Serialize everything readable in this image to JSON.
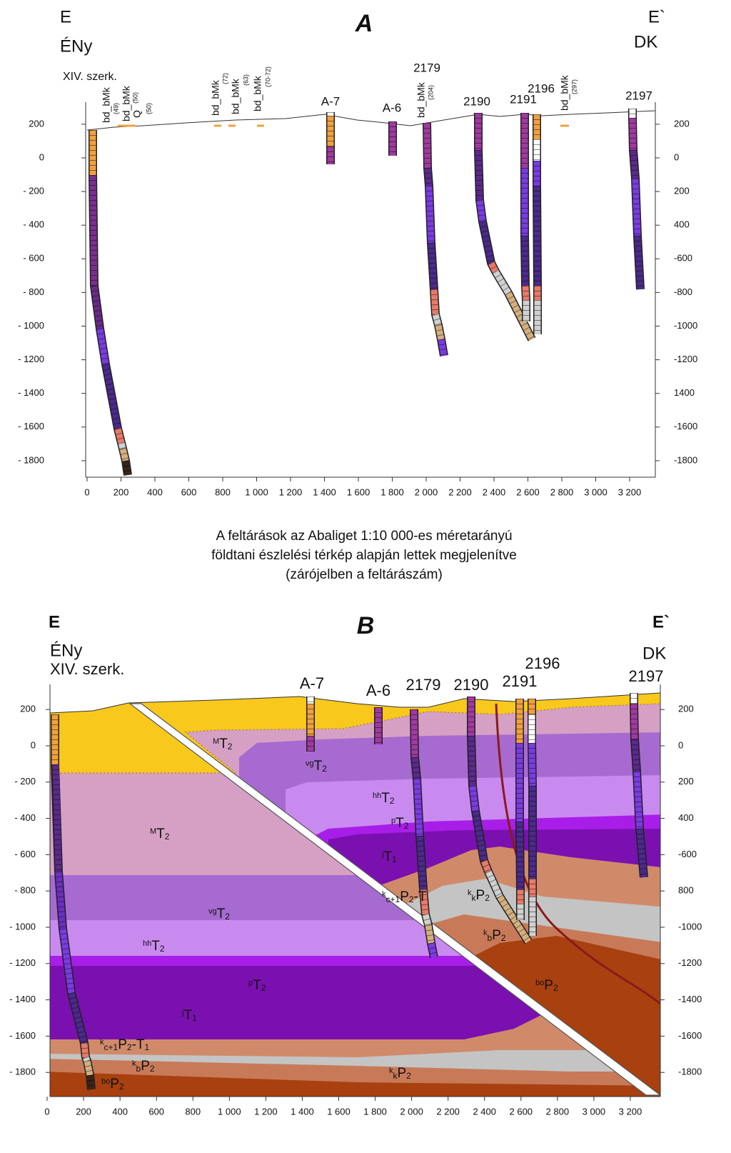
{
  "panel_a": {
    "title": "A",
    "left_top": "E",
    "left_sub": "ÉNy",
    "right_top": "E`",
    "right_sub": "DK",
    "well_label": "XIV. szerk.",
    "boreholes": [
      "A-7",
      "A-6",
      "2179",
      "2190",
      "2191",
      "2196",
      "2197"
    ],
    "outcrops": [
      "bd_bMk",
      "(49)",
      "bd_bMk",
      "Q",
      "(50)",
      "(50)",
      "bd_bMk",
      "(72)",
      "bd_bMk",
      "(63)",
      "bd_bMk",
      "(70-72)",
      "bd_bMk",
      "(204)",
      "bd_bMk",
      "(297)"
    ],
    "xticks": [
      0,
      200,
      400,
      600,
      800,
      {
        "value": 1000,
        "label": "1 000"
      },
      {
        "value": 1200,
        "label": "1 200"
      },
      {
        "value": 1400,
        "label": "1 400"
      },
      {
        "value": 1600,
        "label": "1 600"
      },
      {
        "value": 1800,
        "label": "1 800"
      },
      {
        "value": 2000,
        "label": "2 000"
      },
      {
        "value": 2200,
        "label": "2 200"
      },
      {
        "value": 2400,
        "label": "2 400"
      },
      {
        "value": 2600,
        "label": "2 600"
      },
      {
        "value": 2800,
        "label": "2 800"
      },
      {
        "value": 3000,
        "label": "3 000"
      },
      {
        "value": 3200,
        "label": "3 200"
      }
    ],
    "yticks": [
      200,
      0,
      {
        "value": -200,
        "label": "- 200"
      },
      {
        "value": -400,
        "label": "- 400"
      },
      {
        "value": -600,
        "label": "- 600"
      },
      {
        "value": -800,
        "label": "- 800"
      },
      {
        "value": -1000,
        "label": "- 1000"
      },
      {
        "value": -1200,
        "label": "- 1200"
      },
      {
        "value": -1400,
        "label": "- 1400"
      },
      {
        "value": -1600,
        "label": "- 1600"
      },
      {
        "value": -1800,
        "label": "- 1800"
      }
    ],
    "y2ticks": [
      200,
      0,
      {
        "value": -200,
        "label": "200"
      },
      {
        "value": -400,
        "label": "400"
      },
      -600,
      -800,
      -1000,
      -1200,
      {
        "value": -1400,
        "label": "1400"
      },
      -1600,
      -1800
    ]
  },
  "caption": [
    "A feltárások az Abaliget 1:10 000-es méretarányú",
    "földtani észlelési térkép alapján lettek megjelenítve",
    "(zárójelben a feltárászám)"
  ],
  "panel_b": {
    "title": "B",
    "left_top": "E",
    "left_sub": "ÉNy",
    "right_top": "E`",
    "right_sub": "DK",
    "well_label": "XIV. szerk.",
    "boreholes": [
      "A-7",
      "A-6",
      "2179",
      "2190",
      "2191",
      "2196",
      "2197"
    ],
    "formations": [
      {
        "parts": [
          {
            "t": "M",
            "pos": "sup"
          },
          {
            "t": "T",
            "pos": "base"
          },
          {
            "t": "2",
            "pos": "sub"
          }
        ]
      },
      {
        "parts": [
          {
            "t": "vg",
            "pos": "sup"
          },
          {
            "t": "T",
            "pos": "base"
          },
          {
            "t": "2",
            "pos": "sub"
          }
        ]
      },
      {
        "parts": [
          {
            "t": "hh",
            "pos": "sup"
          },
          {
            "t": "T",
            "pos": "base"
          },
          {
            "t": "2",
            "pos": "sub"
          }
        ]
      },
      {
        "parts": [
          {
            "t": "p",
            "pos": "sup"
          },
          {
            "t": "T",
            "pos": "base"
          },
          {
            "t": "2",
            "pos": "sub"
          }
        ]
      },
      {
        "parts": [
          {
            "t": "j",
            "pos": "sup"
          },
          {
            "t": "T",
            "pos": "base"
          },
          {
            "t": "1",
            "pos": "sub"
          }
        ]
      },
      {
        "parts": [
          {
            "t": "M",
            "pos": "sup"
          },
          {
            "t": "T",
            "pos": "base"
          },
          {
            "t": "2",
            "pos": "sub"
          }
        ]
      },
      {
        "parts": [
          {
            "t": "vg",
            "pos": "sup"
          },
          {
            "t": "T",
            "pos": "base"
          },
          {
            "t": "2",
            "pos": "sub"
          }
        ]
      },
      {
        "parts": [
          {
            "t": "hh",
            "pos": "sup"
          },
          {
            "t": "T",
            "pos": "base"
          },
          {
            "t": "2",
            "pos": "sub"
          }
        ]
      },
      {
        "parts": [
          {
            "t": "p",
            "pos": "sup"
          },
          {
            "t": "T",
            "pos": "base"
          },
          {
            "t": "2",
            "pos": "sub"
          }
        ]
      },
      {
        "parts": [
          {
            "t": "j",
            "pos": "sup"
          },
          {
            "t": "T",
            "pos": "base"
          },
          {
            "t": "1",
            "pos": "sub"
          }
        ]
      },
      {
        "parts": [
          {
            "t": "k",
            "pos": "sup"
          },
          {
            "t": "c+1",
            "pos": "sub"
          },
          {
            "t": "P",
            "pos": "base"
          },
          {
            "t": "2",
            "pos": "sub"
          },
          {
            "t": "-T",
            "pos": "base"
          },
          {
            "t": "1",
            "pos": "sub"
          }
        ]
      },
      {
        "parts": [
          {
            "t": "k",
            "pos": "sup"
          },
          {
            "t": "b",
            "pos": "sub"
          },
          {
            "t": "P",
            "pos": "base"
          },
          {
            "t": "2",
            "pos": "sub"
          }
        ]
      },
      {
        "parts": [
          {
            "t": "bo",
            "pos": "sup"
          },
          {
            "t": "P",
            "pos": "base"
          },
          {
            "t": "2",
            "pos": "sub"
          }
        ]
      },
      {
        "parts": [
          {
            "t": "k",
            "pos": "sup"
          },
          {
            "t": "k",
            "pos": "sub"
          },
          {
            "t": "P",
            "pos": "base"
          },
          {
            "t": "2",
            "pos": "sub"
          }
        ]
      },
      {
        "parts": [
          {
            "t": "k",
            "pos": "sup"
          },
          {
            "t": "c+1",
            "pos": "sub"
          },
          {
            "t": "P",
            "pos": "base"
          },
          {
            "t": "2",
            "pos": "sub"
          },
          {
            "t": "-T",
            "pos": "base"
          }
        ]
      },
      {
        "parts": [
          {
            "t": "k",
            "pos": "sup"
          },
          {
            "t": "k",
            "pos": "sub"
          },
          {
            "t": "P",
            "pos": "base"
          },
          {
            "t": "2",
            "pos": "sub"
          }
        ]
      },
      {
        "parts": [
          {
            "t": "k",
            "pos": "sup"
          },
          {
            "t": "b",
            "pos": "sub"
          },
          {
            "t": "P",
            "pos": "base"
          },
          {
            "t": "2",
            "pos": "sub"
          }
        ]
      },
      {
        "parts": [
          {
            "t": "bo",
            "pos": "sup"
          },
          {
            "t": "P",
            "pos": "base"
          },
          {
            "t": "2",
            "pos": "sub"
          }
        ]
      }
    ],
    "xticks": [
      0,
      200,
      400,
      600,
      800,
      {
        "value": 1000,
        "label": "1 000"
      },
      {
        "value": 1200,
        "label": "1 200"
      },
      {
        "value": 1400,
        "label": "1 400"
      },
      {
        "value": 1600,
        "label": "1 600"
      },
      {
        "value": 1800,
        "label": "1 800"
      },
      {
        "value": 2000,
        "label": "2 000"
      },
      {
        "value": 2200,
        "label": "2 200"
      },
      {
        "value": 2400,
        "label": "2 400"
      },
      {
        "value": 2600,
        "label": "2 600"
      },
      {
        "value": 2800,
        "label": "2 800"
      },
      {
        "value": 3000,
        "label": "3 000"
      },
      {
        "value": 3200,
        "label": "3 200"
      }
    ],
    "yticks": [
      200,
      0,
      {
        "value": -200,
        "label": "- 200"
      },
      {
        "value": -400,
        "label": "- 400"
      },
      {
        "value": -600,
        "label": "- 600"
      },
      {
        "value": -800,
        "label": "- 800"
      },
      {
        "value": -1000,
        "label": "- 1000"
      },
      {
        "value": -1200,
        "label": "- 1200"
      },
      {
        "value": -1400,
        "label": "- 1400"
      },
      {
        "value": -1600,
        "label": "- 1600"
      },
      {
        "value": -1800,
        "label": "- 1800"
      }
    ],
    "y2ticks": [
      200,
      0,
      {
        "value": -200,
        "label": "200"
      },
      {
        "value": -400,
        "label": "400"
      },
      -600,
      {
        "value": -800,
        "label": "800"
      },
      -1000,
      -1200,
      -1400,
      -1600,
      -1800
    ]
  }
}
